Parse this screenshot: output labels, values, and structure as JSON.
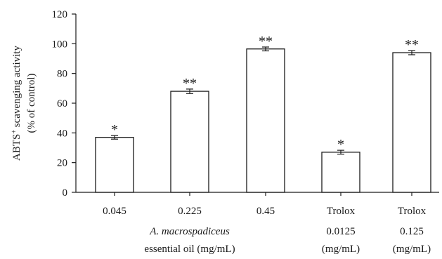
{
  "chart_data": {
    "type": "bar",
    "categories": [
      "0.045",
      "0.225",
      "0.45",
      "Trolox",
      "Trolox"
    ],
    "category_sublabels": [
      "",
      "",
      "",
      "0.0125 (mg/mL)",
      "0.125 (mg/mL)"
    ],
    "values": [
      37,
      68,
      96.5,
      27,
      94
    ],
    "errors": [
      1.2,
      1.5,
      1.3,
      1.3,
      1.4
    ],
    "significance": [
      "*",
      "**",
      "**",
      "*",
      "**"
    ],
    "ylabel_line1": "ABTS",
    "ylabel_superscript": "+",
    "ylabel_line1_rest": " scavenging activity",
    "ylabel_line2": "(% of control)",
    "group_label_italic": "A. macrospadiceus",
    "group_label_plain": "essential oil (mg/mL)",
    "ylim": [
      0,
      120
    ],
    "yticks": [
      0,
      20,
      40,
      60,
      80,
      100,
      120
    ],
    "bar_fill": "#ffffff",
    "bar_stroke": "#1a1a1a"
  }
}
